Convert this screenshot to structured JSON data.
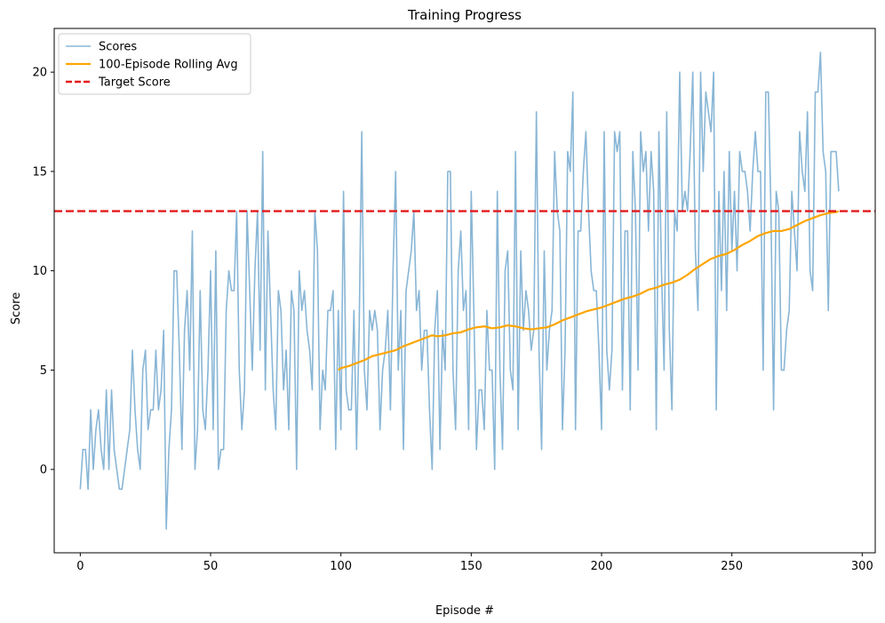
{
  "chart_data": {
    "type": "line",
    "title": "Training Progress",
    "xlabel": "Episode #",
    "ylabel": "Score",
    "xlim": [
      -10,
      305
    ],
    "ylim": [
      -4.2,
      22.2
    ],
    "xticks": [
      0,
      50,
      100,
      150,
      200,
      250,
      300
    ],
    "yticks": [
      0,
      5,
      10,
      15,
      20
    ],
    "grid": false,
    "legend_position": "top-left",
    "colors": {
      "scores": "#89b6d6",
      "rolling": "#ffa500",
      "target": "#e31a1c"
    },
    "series": [
      {
        "name": "Scores",
        "x_start": 0,
        "values": [
          -1,
          1,
          1,
          -1,
          3,
          0,
          2,
          3,
          1,
          0,
          4,
          0,
          4,
          1,
          0,
          -1,
          -1,
          0,
          1,
          2,
          6,
          3,
          1,
          0,
          5,
          6,
          2,
          3,
          3,
          6,
          3,
          4,
          7,
          -3,
          1,
          3,
          10,
          10,
          6,
          1,
          7,
          9,
          5,
          12,
          0,
          2,
          9,
          3,
          2,
          5,
          10,
          2,
          11,
          0,
          1,
          1,
          8,
          10,
          9,
          9,
          13,
          5,
          2,
          4,
          13,
          9,
          5,
          10,
          13,
          6,
          16,
          4,
          12,
          8,
          4,
          2,
          9,
          8,
          4,
          6,
          2,
          9,
          8,
          0,
          10,
          8,
          9,
          7,
          6,
          4,
          13,
          11,
          2,
          5,
          4,
          8,
          8,
          9,
          1,
          8,
          2,
          14,
          4,
          3,
          3,
          8,
          1,
          7,
          17,
          5,
          3,
          8,
          7,
          8,
          7,
          2,
          5,
          6,
          8,
          3,
          10,
          15,
          5,
          8,
          1,
          9,
          10,
          11,
          13,
          8,
          9,
          5,
          7,
          7,
          3,
          0,
          7,
          9,
          1,
          7,
          5,
          15,
          15,
          5,
          2,
          10,
          12,
          8,
          9,
          2,
          14,
          8,
          1,
          4,
          4,
          2,
          8,
          5,
          5,
          0,
          14,
          5,
          1,
          10,
          11,
          5,
          4,
          16,
          2,
          11,
          7,
          9,
          8,
          6,
          7,
          18,
          6,
          1,
          11,
          5,
          7,
          8,
          16,
          13,
          12,
          2,
          6,
          16,
          15,
          19,
          2,
          12,
          12,
          15,
          17,
          13,
          10,
          9,
          9,
          6,
          2,
          17,
          6,
          4,
          6,
          17,
          16,
          17,
          4,
          12,
          12,
          3,
          16,
          13,
          5,
          17,
          15,
          16,
          12,
          16,
          14,
          2,
          17,
          10,
          5,
          18,
          7,
          3,
          13,
          12,
          20,
          13,
          14,
          13,
          16,
          20,
          11,
          8,
          20,
          15,
          19,
          18,
          17,
          20,
          3,
          14,
          9,
          15,
          8,
          16,
          11,
          14,
          10,
          16,
          15,
          15,
          14,
          12,
          15,
          17,
          15,
          15,
          5,
          19,
          19,
          13,
          3,
          14,
          13,
          5,
          5,
          7,
          8,
          14,
          12,
          10,
          17,
          15,
          14,
          18,
          10,
          9,
          19,
          19,
          21,
          16,
          15,
          8,
          16,
          16,
          16,
          14
        ]
      },
      {
        "name": "100-Episode Rolling Avg",
        "x": [
          99,
          100,
          103,
          106,
          109,
          112,
          115,
          118,
          121,
          124,
          127,
          130,
          133,
          135,
          137,
          140,
          143,
          146,
          149,
          152,
          155,
          158,
          161,
          164,
          167,
          170,
          173,
          176,
          179,
          182,
          185,
          188,
          191,
          194,
          197,
          200,
          203,
          206,
          209,
          212,
          215,
          218,
          221,
          224,
          227,
          230,
          233,
          236,
          239,
          242,
          245,
          248,
          251,
          254,
          257,
          260,
          263,
          266,
          269,
          272,
          275,
          278,
          281,
          284,
          287,
          290,
          291
        ],
        "values": [
          5.0,
          5.1,
          5.2,
          5.35,
          5.5,
          5.7,
          5.8,
          5.9,
          6.0,
          6.2,
          6.35,
          6.5,
          6.65,
          6.75,
          6.7,
          6.75,
          6.85,
          6.9,
          7.05,
          7.15,
          7.2,
          7.1,
          7.15,
          7.25,
          7.2,
          7.1,
          7.05,
          7.1,
          7.15,
          7.3,
          7.5,
          7.65,
          7.8,
          7.95,
          8.05,
          8.15,
          8.3,
          8.45,
          8.6,
          8.7,
          8.85,
          9.05,
          9.15,
          9.3,
          9.4,
          9.55,
          9.8,
          10.1,
          10.35,
          10.6,
          10.75,
          10.85,
          11.05,
          11.3,
          11.5,
          11.75,
          11.9,
          12.0,
          12.0,
          12.1,
          12.3,
          12.5,
          12.65,
          12.8,
          12.9,
          12.95,
          13.0
        ]
      },
      {
        "name": "Target Score",
        "y": 13
      }
    ]
  }
}
